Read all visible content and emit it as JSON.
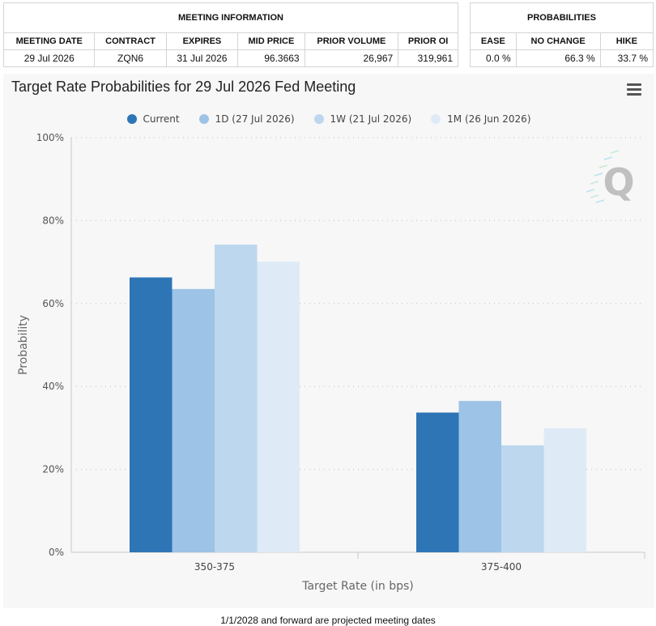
{
  "meeting_info": {
    "header": "MEETING INFORMATION",
    "columns": [
      "MEETING DATE",
      "CONTRACT",
      "EXPIRES",
      "MID PRICE",
      "PRIOR VOLUME",
      "PRIOR OI"
    ],
    "row": [
      "29 Jul 2026",
      "ZQN6",
      "31 Jul 2026",
      "96.3663",
      "26,967",
      "319,961"
    ]
  },
  "probabilities": {
    "header": "PROBABILITIES",
    "columns": [
      "EASE",
      "NO CHANGE",
      "HIKE"
    ],
    "row": [
      "0.0 %",
      "66.3 %",
      "33.7 %"
    ]
  },
  "watermark": "Q",
  "colors": {
    "current": "#2e75b6",
    "d1": "#9dc3e6",
    "w1": "#bdd7ee",
    "m1": "#deebf7"
  },
  "chart_data": {
    "type": "bar",
    "title": "Target Rate Probabilities for 29 Jul 2026 Fed Meeting",
    "xlabel": "Target Rate (in bps)",
    "ylabel": "Probability",
    "categories": [
      "350-375",
      "375-400"
    ],
    "ylim": [
      0,
      100
    ],
    "yticks": [
      "0%",
      "20%",
      "40%",
      "60%",
      "80%",
      "100%"
    ],
    "grid": true,
    "legend_position": "top-center",
    "series": [
      {
        "name": "Current",
        "values": [
          66.3,
          33.7
        ]
      },
      {
        "name": "1D (27 Jul 2026)",
        "values": [
          63.5,
          36.5
        ]
      },
      {
        "name": "1W (21 Jul 2026)",
        "values": [
          74.2,
          25.8
        ]
      },
      {
        "name": "1M (26 Jun 2026)",
        "values": [
          70.1,
          29.9
        ]
      }
    ]
  },
  "footnote": "1/1/2028 and forward are projected meeting dates"
}
